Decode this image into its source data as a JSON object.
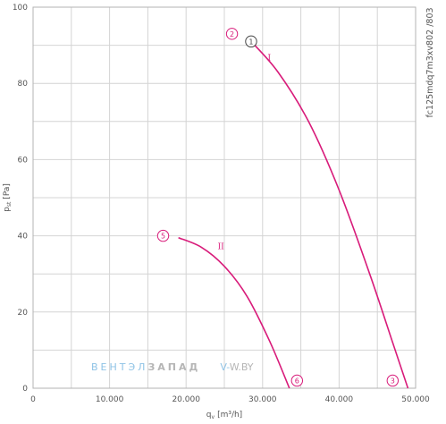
{
  "chart_data": {
    "type": "line",
    "x_ticks": [
      "0",
      "10.000",
      "20.000",
      "30.000",
      "40.000",
      "50.000"
    ],
    "y_ticks": [
      "0",
      "20",
      "40",
      "60",
      "80",
      "100"
    ],
    "xlabel": {
      "main": "q",
      "sub": "v",
      "unit": "[m³/h]"
    },
    "ylabel": {
      "main": "p",
      "sub": "st",
      "unit": "[Pa]"
    },
    "xlim": [
      0,
      50000
    ],
    "ylim": [
      0,
      100
    ],
    "grid": true,
    "series": [
      {
        "name": "I",
        "x": [
          28500,
          32000,
          36000,
          40000,
          44000,
          47000,
          49000
        ],
        "y": [
          91,
          83,
          70,
          52,
          30,
          12,
          0
        ]
      },
      {
        "name": "II",
        "x": [
          19000,
          22000,
          25000,
          28000,
          31000,
          33500
        ],
        "y": [
          39.5,
          37,
          32,
          24,
          12,
          0
        ]
      }
    ],
    "annotations": [
      {
        "label": "1",
        "x": 28500,
        "y": 91
      },
      {
        "label": "2",
        "x": 26000,
        "y": 93
      },
      {
        "label": "3",
        "x": 47000,
        "y": 2
      },
      {
        "label": "5",
        "x": 17000,
        "y": 40
      },
      {
        "label": "6",
        "x": 34500,
        "y": 2
      }
    ],
    "side_code": "fc125mdq7m3xv802 /803",
    "watermark": {
      "part1": "ВЕНТЭЛ",
      "part2": "ЗАПАД",
      "part3": "V-",
      "part4": "W.BY"
    },
    "colors": {
      "curve": "#d81b7a",
      "grid": "#d4d4d4",
      "frame": "#b3b3b3"
    }
  }
}
